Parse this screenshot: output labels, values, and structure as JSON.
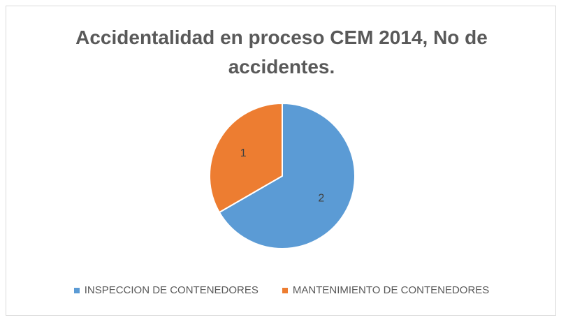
{
  "chart_data": {
    "type": "pie",
    "title": "Accidentalidad en proceso CEM 2014, No de accidentes.",
    "categories": [
      "INSPECCION DE CONTENEDORES",
      "MANTENIMIENTO DE CONTENEDORES"
    ],
    "values": [
      2,
      1
    ],
    "colors": [
      "#5b9bd5",
      "#ed7d31"
    ],
    "data_labels": [
      "2",
      "1"
    ],
    "legend_position": "bottom",
    "start_angle": "12 o'clock, clockwise"
  }
}
